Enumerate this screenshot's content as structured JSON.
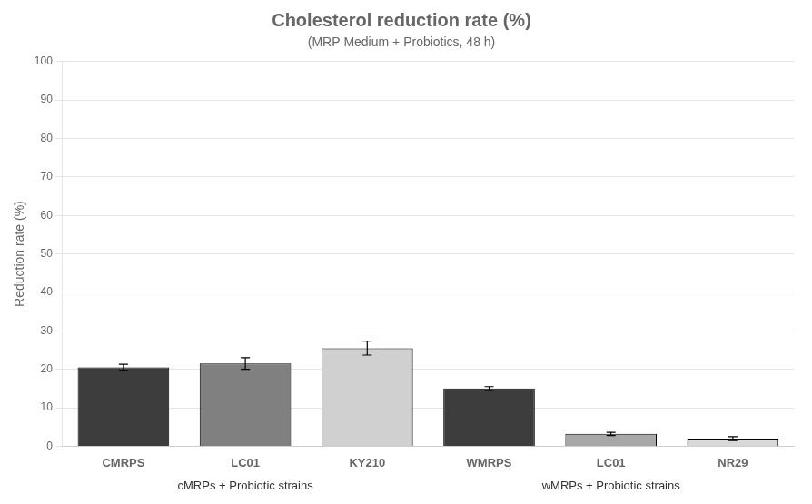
{
  "chart_data": {
    "type": "bar",
    "title": "Cholesterol reduction rate (%)",
    "subtitle": "(MRP Medium + Probiotics, 48 h)",
    "ylabel": "Reduction rate (%)",
    "categories": [
      "CMRPS",
      "LC01",
      "KY210",
      "WMRPS",
      "LC01",
      "NR29"
    ],
    "values": [
      20.5,
      21.5,
      25.5,
      15.0,
      3.2,
      2.0
    ],
    "errors": [
      0.8,
      1.5,
      1.8,
      0.5,
      0.4,
      0.5
    ],
    "colors": [
      "#3d3d3d",
      "#808080",
      "#d0d0d0",
      "#3d3d3d",
      "#a8a8a8",
      "#d8d8d8"
    ],
    "group_labels": [
      "cMRPs + Probiotic strains",
      "wMRPs + Probiotic strains"
    ],
    "ylim": [
      0,
      100
    ],
    "yticks": [
      0,
      10,
      20,
      30,
      40,
      50,
      60,
      70,
      80,
      90,
      100
    ],
    "grid": true
  }
}
